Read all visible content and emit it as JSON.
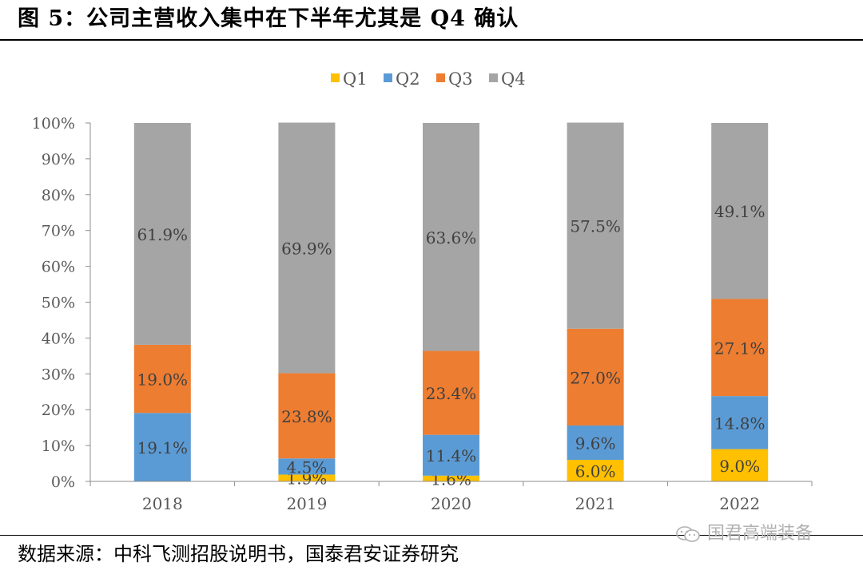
{
  "figure": {
    "title": "图 5：公司主营收入集中在下半年尤其是 Q4 确认",
    "source": "数据来源：中科飞测招股说明书，国泰君安证券研究",
    "watermark": "国君高端装备"
  },
  "chart_data": {
    "type": "bar",
    "stacked": true,
    "title": "",
    "xlabel": "",
    "ylabel": "",
    "categories": [
      "2018",
      "2019",
      "2020",
      "2021",
      "2022"
    ],
    "series": [
      {
        "name": "Q1",
        "color": "#FFC000",
        "values": [
          0.0,
          1.9,
          1.6,
          6.0,
          9.0
        ],
        "labels": [
          "",
          "1.9%",
          "1.6%",
          "6.0%",
          "9.0%"
        ]
      },
      {
        "name": "Q2",
        "color": "#5B9BD5",
        "values": [
          19.1,
          4.5,
          11.4,
          9.6,
          14.8
        ],
        "labels": [
          "19.1%",
          "4.5%",
          "11.4%",
          "9.6%",
          "14.8%"
        ]
      },
      {
        "name": "Q3",
        "color": "#ED7D31",
        "values": [
          19.0,
          23.8,
          23.4,
          27.0,
          27.1
        ],
        "labels": [
          "19.0%",
          "23.8%",
          "23.4%",
          "27.0%",
          "27.1%"
        ]
      },
      {
        "name": "Q4",
        "color": "#A5A5A5",
        "values": [
          61.9,
          69.9,
          63.6,
          57.5,
          49.1
        ],
        "labels": [
          "61.9%",
          "69.9%",
          "63.6%",
          "57.5%",
          "49.1%"
        ]
      }
    ],
    "yticks": [
      "0%",
      "10%",
      "20%",
      "30%",
      "40%",
      "50%",
      "60%",
      "70%",
      "80%",
      "90%",
      "100%"
    ],
    "ylim": [
      0,
      100
    ],
    "grid": false,
    "legend": "top-center"
  }
}
